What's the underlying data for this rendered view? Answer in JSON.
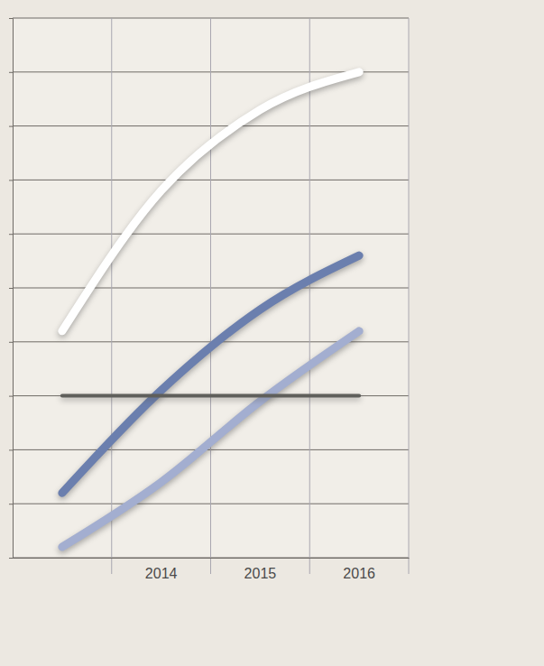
{
  "chart_data": {
    "type": "line",
    "categories": [
      null,
      "2014",
      "2015",
      "2016"
    ],
    "series": [
      {
        "color": "#ffffff",
        "values": [
          4.2,
          6.8,
          8.3,
          9.0
        ]
      },
      {
        "color": "#6b7fae",
        "values": [
          1.2,
          3.1,
          4.6,
          5.6
        ]
      },
      {
        "color": "#a3aed0",
        "values": [
          0.2,
          1.4,
          2.9,
          4.2
        ]
      },
      {
        "color": "#5f5f5b",
        "values": [
          3.0,
          3.0,
          3.0,
          3.0
        ]
      }
    ],
    "ylim": [
      0,
      10
    ],
    "yticks": [
      0,
      1,
      2,
      3,
      4,
      5,
      6,
      7,
      8,
      9,
      10
    ],
    "grid": true,
    "tick_labels": "x"
  }
}
